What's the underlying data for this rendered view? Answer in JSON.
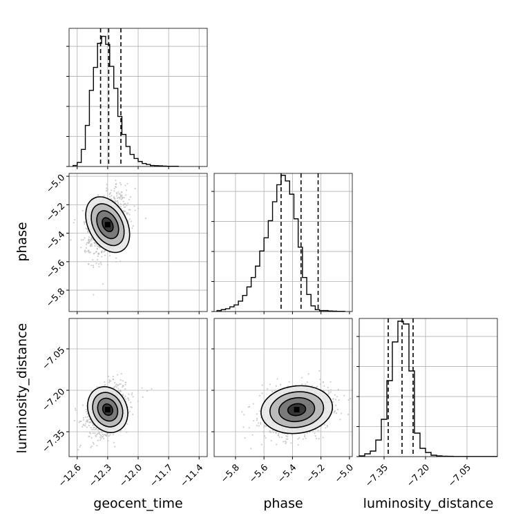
{
  "chart_data": {
    "type": "corner",
    "parameters": [
      "geocent_time",
      "phase",
      "luminosity_distance"
    ],
    "grid": true,
    "colors": {
      "line": "#000000",
      "scatter": "#bdbdbd",
      "grid": "#b0b0b0"
    },
    "axes": {
      "geocent_time": {
        "xlim": [
          -12.68,
          -11.32
        ],
        "ticks": [
          -12.6,
          -12.3,
          -12.0,
          -11.7,
          -11.4
        ],
        "tick_labels": [
          "−12.6",
          "−12.3",
          "−12.0",
          "−11.7",
          "−11.4"
        ]
      },
      "phase": {
        "xlim": [
          -5.95,
          -4.98
        ],
        "ticks": [
          -5.8,
          -5.6,
          -5.4,
          -5.2,
          -5.0
        ],
        "tick_labels": [
          "−5.8",
          "−5.6",
          "−5.4",
          "−5.2",
          "−5.0"
        ]
      },
      "luminosity_distance": {
        "xlim": [
          -7.44,
          -6.94
        ],
        "ticks": [
          -7.35,
          -7.2,
          -7.05
        ],
        "tick_labels": [
          "−7.35",
          "−7.20",
          "−7.05"
        ]
      }
    },
    "histograms": [
      {
        "parameter": "geocent_time",
        "bin_edges": [
          -12.64,
          -12.6,
          -12.56,
          -12.52,
          -12.48,
          -12.44,
          -12.4,
          -12.36,
          -12.32,
          -12.28,
          -12.24,
          -12.2,
          -12.16,
          -12.12,
          -12.08,
          -12.04,
          -12.0,
          -11.96,
          -11.92,
          -11.88,
          -11.84,
          -11.8,
          -11.76,
          -11.72,
          -11.68,
          -11.64,
          -11.6
        ],
        "counts": [
          0.5,
          2,
          8.5,
          20.5,
          38,
          49.5,
          61.5,
          65,
          61,
          50,
          39,
          25,
          16,
          10,
          6,
          4,
          2.5,
          1.5,
          1,
          0.5,
          0.4,
          0.3,
          0.2,
          0.1,
          0.1,
          0.1
        ],
        "ymax": 69,
        "quantiles": [
          -12.37,
          -12.29,
          -12.17
        ]
      },
      {
        "parameter": "phase",
        "bin_edges": [
          -5.93,
          -5.9,
          -5.87,
          -5.84,
          -5.81,
          -5.78,
          -5.75,
          -5.72,
          -5.69,
          -5.66,
          -5.63,
          -5.6,
          -5.57,
          -5.54,
          -5.51,
          -5.48,
          -5.45,
          -5.42,
          -5.39,
          -5.36,
          -5.33,
          -5.3,
          -5.27,
          -5.24,
          -5.21,
          -5.18,
          -5.15,
          -5.12,
          -5.09,
          -5.06,
          -5.03
        ],
        "counts": [
          0.5,
          1,
          1.5,
          2.5,
          3.5,
          5.5,
          8.5,
          13,
          18,
          24,
          32,
          39,
          48,
          58,
          67,
          72,
          69,
          62,
          49,
          34,
          18,
          9,
          3,
          1,
          0.5,
          0.5,
          0.3,
          0.2,
          0.1,
          0.1
        ],
        "ymax": 73,
        "quantiles": [
          -5.48,
          -5.34,
          -5.22
        ]
      },
      {
        "parameter": "luminosity_distance",
        "bin_edges": [
          -7.44,
          -7.42,
          -7.4,
          -7.38,
          -7.36,
          -7.34,
          -7.32,
          -7.3,
          -7.28,
          -7.26,
          -7.24,
          -7.22,
          -7.2,
          -7.18,
          -7.16,
          -7.14,
          -7.12,
          -7.1,
          -7.08,
          -7.06,
          -7.04,
          -7.02,
          -7.0,
          -6.98,
          -6.96,
          -6.94
        ],
        "counts": [
          0.5,
          2,
          4,
          12,
          27,
          55,
          83,
          98,
          96,
          62,
          17,
          6,
          3,
          1,
          0.5,
          0.3,
          0.2,
          0.1,
          0.1,
          0.1,
          0.1,
          0.1,
          0.1,
          0.1,
          0.1
        ],
        "ymax": 100,
        "quantiles": [
          -7.335,
          -7.285,
          -7.245
        ]
      }
    ],
    "pairs": [
      {
        "x": "geocent_time",
        "y": "phase",
        "ylim": [
          -5.95,
          -4.95
        ],
        "yticks": [
          -5.8,
          -5.6,
          -5.4,
          -5.2,
          -5.0
        ],
        "ytick_labels": [
          "−5.8",
          "−5.6",
          "−5.4",
          "−5.2",
          "−5.0"
        ],
        "mean": [
          -12.3,
          -5.34
        ],
        "sd": [
          0.09,
          0.11
        ],
        "rho": 0.35
      },
      {
        "x": "geocent_time",
        "y": "luminosity_distance",
        "ylim": [
          -7.44,
          -6.94
        ],
        "yticks": [
          -7.35,
          -7.2,
          -7.05
        ],
        "ytick_labels": [
          "−7.35",
          "−7.20",
          "−7.05"
        ],
        "mean": [
          -12.3,
          -7.27
        ],
        "sd": [
          0.09,
          0.045
        ],
        "rho": 0.4
      },
      {
        "x": "phase",
        "y": "luminosity_distance",
        "mean": [
          -5.37,
          -7.27
        ],
        "sd": [
          0.12,
          0.045
        ],
        "rho": 0.2
      }
    ],
    "contour_levels": [
      0.5,
      1.0,
      1.5,
      2.0
    ]
  }
}
